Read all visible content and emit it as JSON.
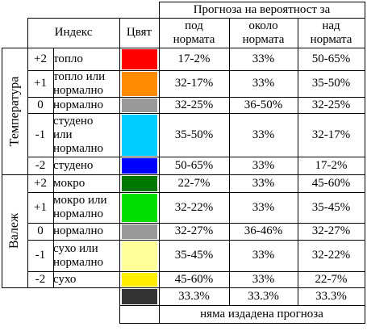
{
  "header": {
    "forecast_title": "Прогноза на вероятност за",
    "index_label": "Индекс",
    "color_label": "Цвят",
    "below_line1": "под",
    "below_line2": "нормата",
    "near_line1": "около",
    "near_line2": "нормата",
    "above_line1": "над",
    "above_line2": "нормата"
  },
  "groups": {
    "temperature": "Температура",
    "precipitation": "Валеж"
  },
  "temperature_rows": [
    {
      "index": "+2",
      "desc": [
        "топло"
      ],
      "color": "#ff0000",
      "below": "17-2%",
      "near": "33%",
      "above": "50-65%"
    },
    {
      "index": "+1",
      "desc": [
        "топло или",
        "нормално"
      ],
      "color": "#ff8c00",
      "below": "32-17%",
      "near": "33%",
      "above": "35-50%"
    },
    {
      "index": "0",
      "desc": [
        "нормално"
      ],
      "color": "#999999",
      "below": "32-25%",
      "near": "36-50%",
      "above": "32-25%"
    },
    {
      "index": "-1",
      "desc": [
        "студено",
        "или",
        "нормално"
      ],
      "color": "#00ccff",
      "below": "35-50%",
      "near": "33%",
      "above": "32-17%"
    },
    {
      "index": "-2",
      "desc": [
        "студено"
      ],
      "color": "#0000ff",
      "below": "50-65%",
      "near": "33%",
      "above": "17-2%"
    }
  ],
  "precipitation_rows": [
    {
      "index": "+2",
      "desc": [
        "мокро"
      ],
      "color": "#007700",
      "below": "22-7%",
      "near": "33%",
      "above": "45-60%"
    },
    {
      "index": "+1",
      "desc": [
        "мокро или",
        "нормално"
      ],
      "color": "#00dd00",
      "below": "32-22%",
      "near": "33%",
      "above": "35-45%"
    },
    {
      "index": "0",
      "desc": [
        "нормално"
      ],
      "color": "#999999",
      "below": "32-27%",
      "near": "36-46%",
      "above": "32-27%"
    },
    {
      "index": "-1",
      "desc": [
        "сухо или",
        "нормално"
      ],
      "color": "#ffff99",
      "below": "35-45%",
      "near": "33%",
      "above": "32-22%"
    },
    {
      "index": "-2",
      "desc": [
        "сухо"
      ],
      "color": "#ffee00",
      "below": "45-60%",
      "near": "33%",
      "above": "22-7%"
    }
  ],
  "climatology_row": {
    "color": "#333333",
    "below": "33.3%",
    "near": "33.3%",
    "above": "33.3%"
  },
  "no_forecast": {
    "color": "#ffffff",
    "label": "няма издадена прогноза"
  }
}
